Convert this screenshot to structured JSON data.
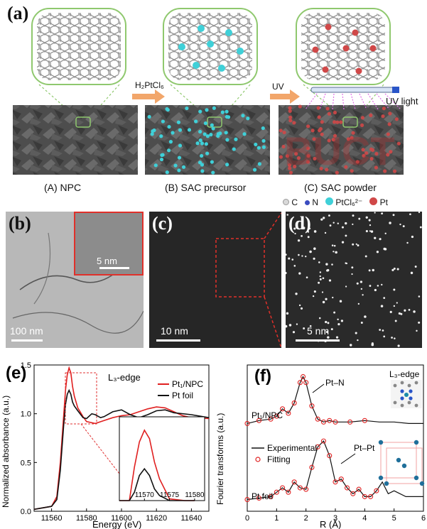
{
  "panels": {
    "a": {
      "label": "(a)",
      "step1": "H₂PtCl₆",
      "step2": "UV",
      "uv_text": "UV light",
      "captions": [
        "(A) NPC",
        "(B) SAC precursor",
        "(C) SAC powder"
      ],
      "legend": [
        {
          "sym": "C",
          "color": "#d9d9d9"
        },
        {
          "sym": "N",
          "color": "#3b4cc0"
        },
        {
          "sym": "PtCl₆²⁻",
          "color": "#3fd0d8"
        },
        {
          "sym": "Pt",
          "color": "#d04848"
        }
      ]
    },
    "b": {
      "label": "(b)",
      "scale": "100 nm",
      "inset_scale": "5 nm"
    },
    "c": {
      "label": "(c)",
      "scale": "10 nm"
    },
    "d": {
      "label": "(d)",
      "scale": "5 nm"
    },
    "e": {
      "label": "(e)"
    },
    "f": {
      "label": "(f)"
    }
  },
  "chart_data": [
    {
      "type": "line",
      "panel": "e",
      "annotation": "L₃-edge",
      "xlabel": "Energy (eV)",
      "ylabel": "Normalized absorbance (a.u.)",
      "xlim": [
        11550,
        11650
      ],
      "ylim": [
        0,
        1.5
      ],
      "xticks": [
        "11560",
        "11580",
        "11600",
        "11620",
        "11640"
      ],
      "yticks": [
        "0.0",
        "0.5",
        "1.0",
        "1.5"
      ],
      "series": [
        {
          "name": "Pt₁/NPC",
          "color": "#e02020",
          "x": [
            11550,
            11560,
            11563,
            11565,
            11567,
            11568,
            11569,
            11570,
            11571,
            11572,
            11573,
            11575,
            11578,
            11580,
            11585,
            11590,
            11595,
            11600,
            11605,
            11610,
            11615,
            11620,
            11625,
            11630,
            11635,
            11640,
            11650
          ],
          "y": [
            0.02,
            0.05,
            0.15,
            0.5,
            1.0,
            1.25,
            1.4,
            1.47,
            1.42,
            1.28,
            1.18,
            1.06,
            0.97,
            0.92,
            0.9,
            0.93,
            0.96,
            0.98,
            0.99,
            1.02,
            1.05,
            1.07,
            1.06,
            1.02,
            0.98,
            0.96,
            0.95
          ]
        },
        {
          "name": "Pt foil",
          "color": "#111111",
          "x": [
            11550,
            11560,
            11563,
            11565,
            11567,
            11568,
            11569,
            11570,
            11571,
            11572,
            11573,
            11575,
            11578,
            11580,
            11583,
            11585,
            11588,
            11590,
            11595,
            11600,
            11605,
            11610,
            11615,
            11620,
            11625,
            11630,
            11640,
            11650
          ],
          "y": [
            0.02,
            0.05,
            0.12,
            0.42,
            0.9,
            1.1,
            1.2,
            1.24,
            1.2,
            1.12,
            1.08,
            1.03,
            0.96,
            0.95,
            1.0,
            0.99,
            0.96,
            0.97,
            1.02,
            1.04,
            0.99,
            0.96,
            0.99,
            1.03,
            1.04,
            1.01,
            0.99,
            0.96
          ]
        }
      ],
      "inset": {
        "xticks": [
          "11570",
          "11575",
          "11580"
        ],
        "xlim": [
          11565,
          11582
        ],
        "ylim": [
          1.05,
          1.55
        ]
      }
    },
    {
      "type": "line",
      "panel": "f",
      "annotation": "L₃-edge",
      "xlabel": "R (Å)",
      "ylabel": "Fourier transforms (a.u.)",
      "xlim": [
        0,
        6
      ],
      "ylim": [
        0,
        1
      ],
      "xticks": [
        "0",
        "1",
        "2",
        "3",
        "4",
        "5",
        "6"
      ],
      "peak_labels": [
        "Pt–N",
        "Pt–Pt"
      ],
      "curve_labels": [
        "Pt₁/NPC",
        "Pt foil"
      ],
      "legend": [
        "Experimental",
        "Fitting"
      ],
      "series": [
        {
          "name": "Pt₁/NPC",
          "x": [
            0,
            0.4,
            0.8,
            1.0,
            1.2,
            1.4,
            1.6,
            1.8,
            1.9,
            2.0,
            2.2,
            2.4,
            2.6,
            2.8,
            3.0,
            3.5,
            4.0,
            4.5,
            5.0,
            5.5,
            6.0
          ],
          "y": [
            0.6,
            0.62,
            0.63,
            0.65,
            0.7,
            0.67,
            0.74,
            0.88,
            0.92,
            0.88,
            0.72,
            0.63,
            0.61,
            0.62,
            0.61,
            0.61,
            0.62,
            0.61,
            0.61,
            0.6,
            0.6
          ]
        },
        {
          "name": "Pt foil",
          "x": [
            0,
            0.4,
            0.8,
            1.0,
            1.2,
            1.4,
            1.6,
            1.8,
            2.0,
            2.2,
            2.4,
            2.6,
            2.8,
            3.0,
            3.2,
            3.4,
            3.6,
            3.8,
            4.0,
            4.2,
            4.4,
            4.6,
            4.8,
            5.0,
            5.4,
            6.0
          ],
          "y": [
            0.08,
            0.09,
            0.1,
            0.13,
            0.16,
            0.13,
            0.2,
            0.16,
            0.15,
            0.3,
            0.44,
            0.48,
            0.38,
            0.2,
            0.22,
            0.16,
            0.12,
            0.15,
            0.1,
            0.1,
            0.14,
            0.2,
            0.12,
            0.14,
            0.1,
            0.1
          ]
        }
      ]
    }
  ]
}
